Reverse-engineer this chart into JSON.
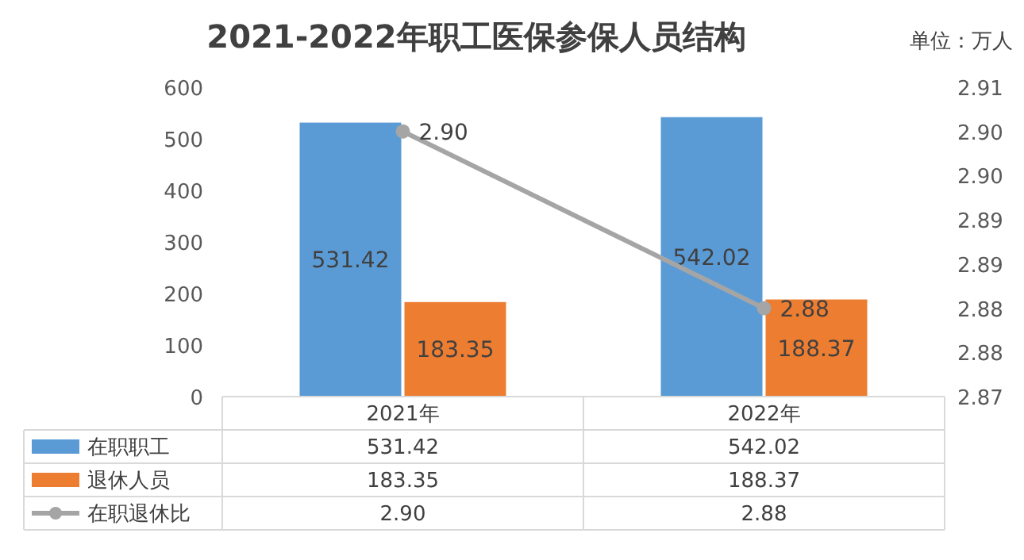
{
  "chart_data": {
    "type": "bar",
    "title": "2021-2022年职工医保参保人员结构",
    "annotations": [
      "单位：万人"
    ],
    "categories": [
      "2021年",
      "2022年"
    ],
    "series": [
      {
        "name": "在职职工",
        "color": "#5b9bd5",
        "values": [
          531.42,
          542.02
        ],
        "value_labels": [
          "531.42",
          "542.02"
        ]
      },
      {
        "name": "退休人员",
        "color": "#ed7d31",
        "values": [
          183.35,
          188.37
        ],
        "value_labels": [
          "183.35",
          "188.37"
        ]
      },
      {
        "name": "在职退休比",
        "color": "#a5a5a5",
        "type": "line",
        "axis": "y2",
        "marker": "circle",
        "values": [
          2.9,
          2.88
        ],
        "value_labels": [
          "2.90",
          "2.88"
        ]
      }
    ],
    "ylim": [
      0,
      600
    ],
    "yticks": [
      0,
      100,
      200,
      300,
      400,
      500,
      600
    ],
    "y2lim": [
      2.87,
      2.905
    ],
    "y2ticks": [
      2.87,
      {
        "value": 2.875,
        "label": "2.88"
      },
      2.88,
      {
        "value": 2.885,
        "label": "2.89"
      },
      2.89,
      {
        "value": 2.895,
        "label": "2.90"
      },
      {
        "value": 2.9,
        "label": "2.90"
      },
      {
        "value": 2.905,
        "label": "2.91"
      }
    ],
    "legend": "bottom"
  }
}
